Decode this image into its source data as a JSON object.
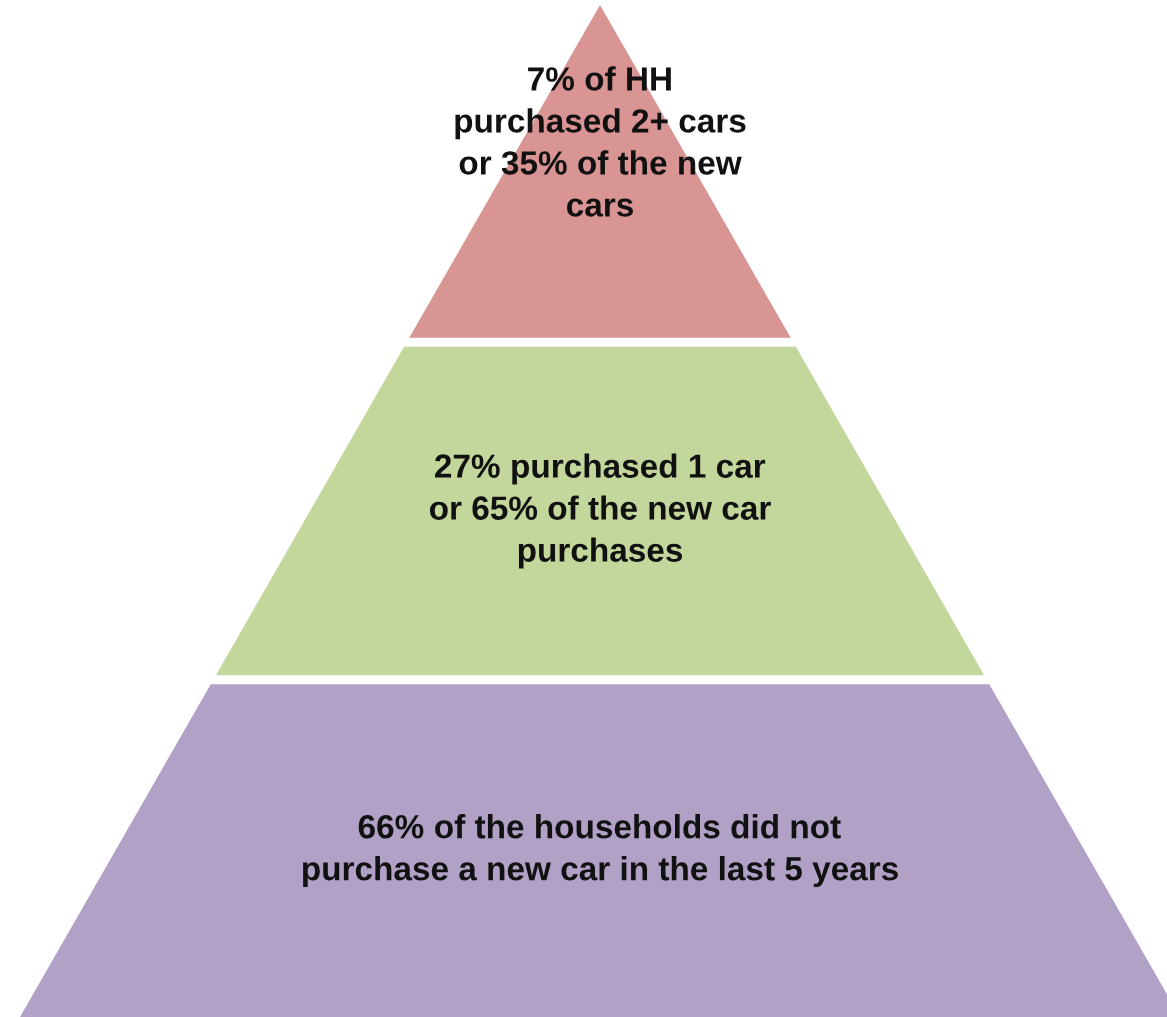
{
  "chart_data": {
    "type": "other",
    "values": [
      7,
      27,
      66
    ],
    "value_labels": [
      "7%",
      "27%",
      "66%"
    ],
    "categories": [
      "of HH\npurchased 2+ cars\nor 35% of the new\ncars",
      "purchased 1 car\nor 65% of the new car\npurchases",
      "of the households did not\npurchase a new car in the last 5 years"
    ],
    "colors": [
      "#d99594",
      "#c3d69b",
      "#b2a1c7"
    ]
  }
}
